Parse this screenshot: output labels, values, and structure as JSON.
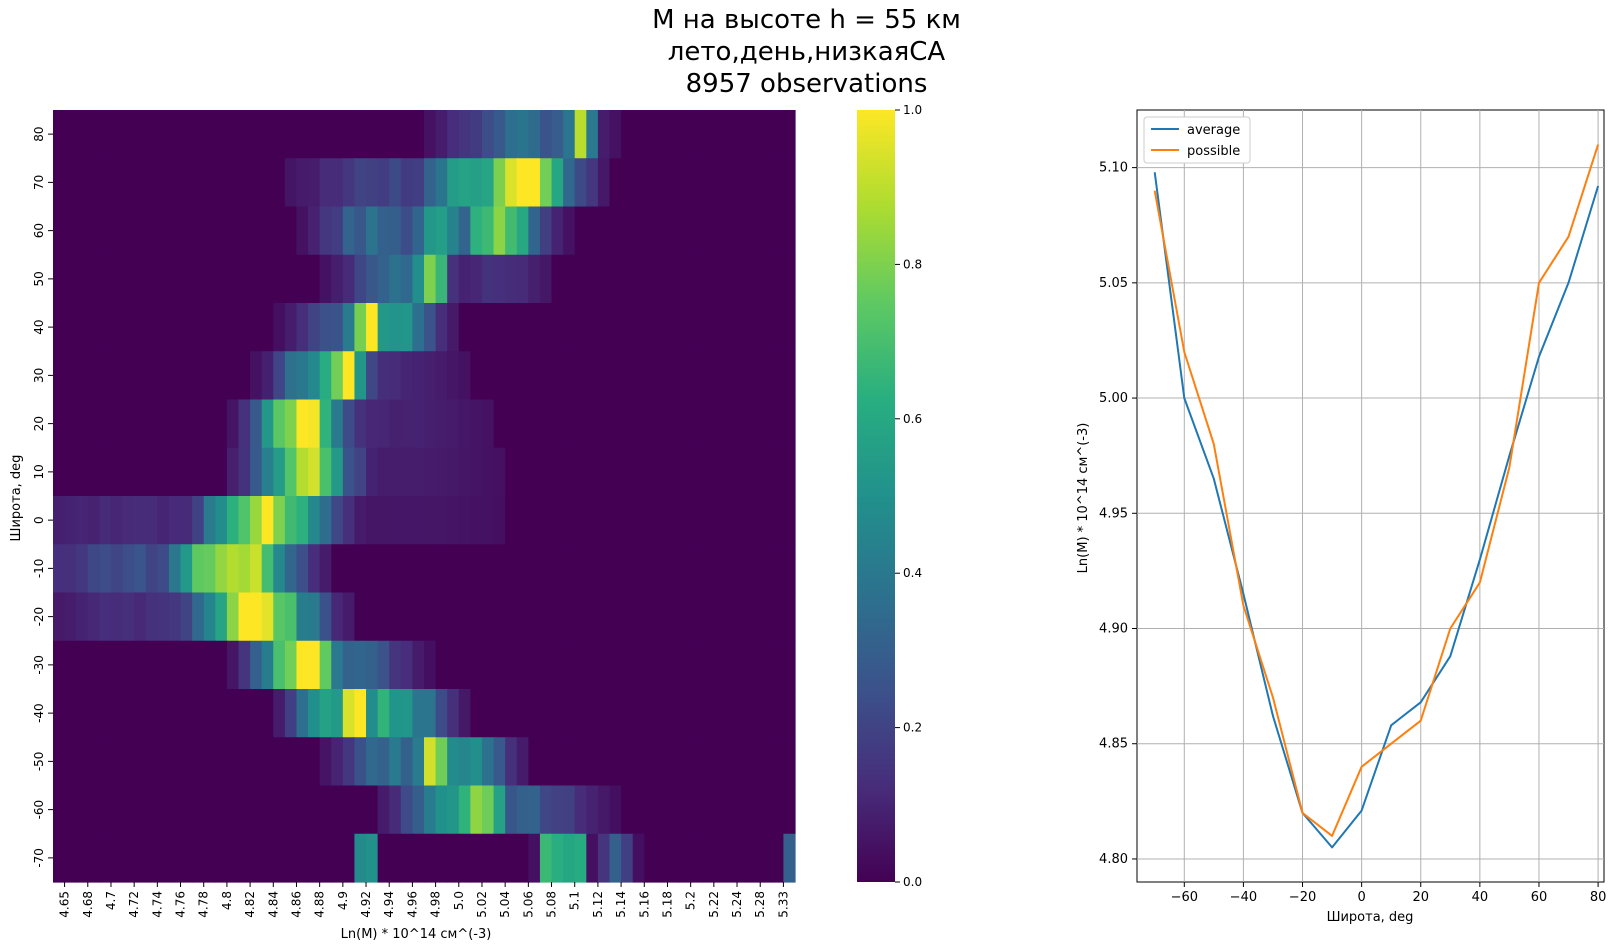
{
  "figure": {
    "title_lines": [
      "M на высоте h = 55 км",
      "лето,день,низкаяCA",
      "8957 observations"
    ]
  },
  "chart_data": [
    {
      "type": "heatmap",
      "xlabel": "Ln(M) * 10^14 см^(-3)",
      "ylabel": "Широта, deg",
      "x_tick_labels": [
        "4.65",
        "4.68",
        "4.7",
        "4.72",
        "4.74",
        "4.76",
        "4.78",
        "4.8",
        "4.82",
        "4.84",
        "4.86",
        "4.88",
        "4.9",
        "4.92",
        "4.94",
        "4.96",
        "4.98",
        "5.0",
        "5.02",
        "5.04",
        "5.06",
        "5.08",
        "5.1",
        "5.12",
        "5.14",
        "5.16",
        "5.18",
        "5.2",
        "5.22",
        "5.24",
        "5.28",
        "5.33"
      ],
      "y_tick_labels": [
        "80",
        "70",
        "60",
        "50",
        "40",
        "30",
        "20",
        "10",
        "0",
        "-10",
        "-20",
        "-30",
        "-40",
        "-50",
        "-60",
        "-70"
      ],
      "colormap": "viridis",
      "colorbar": {
        "range": [
          0,
          1
        ],
        "ticks": [
          "0.0",
          "0.2",
          "0.4",
          "0.6",
          "0.8",
          "1.0"
        ]
      },
      "n_columns": 64,
      "rows": [
        {
          "lat": 80,
          "peaks": [
            [
              45,
              1.0,
              0.7
            ],
            [
              40,
              0.35,
              4.0
            ],
            [
              43,
              0.3,
              2.0
            ]
          ]
        },
        {
          "lat": 70,
          "peaks": [
            [
              40,
              1.0,
              3.0
            ],
            [
              35,
              0.55,
              3.0
            ],
            [
              28,
              0.2,
              5.0
            ]
          ]
        },
        {
          "lat": 60,
          "peaks": [
            [
              38,
              0.8,
              2.5
            ],
            [
              33,
              0.55,
              2.0
            ],
            [
              27,
              0.35,
              3.0
            ]
          ]
        },
        {
          "lat": 50,
          "peaks": [
            [
              32,
              1.0,
              1.0
            ],
            [
              29,
              0.35,
              3.0
            ],
            [
              38,
              0.15,
              3.0
            ]
          ]
        },
        {
          "lat": 40,
          "peaks": [
            [
              26.5,
              1.0,
              1.2
            ],
            [
              29,
              0.5,
              2.5
            ],
            [
              24,
              0.3,
              2.5
            ]
          ]
        },
        {
          "lat": 30,
          "peaks": [
            [
              24.5,
              1.0,
              1.5
            ],
            [
              22.5,
              0.55,
              2.5
            ],
            [
              28,
              0.12,
              5.0
            ]
          ]
        },
        {
          "lat": 20,
          "peaks": [
            [
              21,
              0.95,
              2.5
            ],
            [
              26,
              0.12,
              8.0
            ]
          ]
        },
        {
          "lat": 10,
          "peaks": [
            [
              21,
              0.88,
              2.8
            ],
            [
              28,
              0.08,
              9.0
            ]
          ]
        },
        {
          "lat": 0,
          "peaks": [
            [
              18,
              1.0,
              3.5
            ],
            [
              7,
              0.12,
              10.0
            ],
            [
              30,
              0.06,
              9.0
            ]
          ]
        },
        {
          "lat": -10,
          "peaks": [
            [
              15,
              1.0,
              3.5
            ],
            [
              8,
              0.25,
              8.0
            ]
          ]
        },
        {
          "lat": -20,
          "peaks": [
            [
              17,
              1.0,
              3.5
            ],
            [
              10,
              0.15,
              8.0
            ]
          ]
        },
        {
          "lat": -30,
          "peaks": [
            [
              21,
              1.0,
              2.5
            ],
            [
              26,
              0.3,
              3.0
            ]
          ]
        },
        {
          "lat": -40,
          "peaks": [
            [
              25.5,
              1.0,
              1.2
            ],
            [
              29,
              0.6,
              3.0
            ],
            [
              23,
              0.55,
              2.0
            ]
          ]
        },
        {
          "lat": -50,
          "peaks": [
            [
              32.5,
              1.0,
              1.2
            ],
            [
              35,
              0.55,
              2.5
            ],
            [
              29,
              0.4,
              3.0
            ]
          ]
        },
        {
          "lat": -60,
          "peaks": [
            [
              36.5,
              1.0,
              1.5
            ],
            [
              34,
              0.55,
              3.0
            ],
            [
              40,
              0.3,
              4.0
            ]
          ]
        },
        {
          "lat": -70,
          "peaks": [
            [
              42.5,
              1.0,
              0.6
            ],
            [
              44.5,
              1.0,
              0.6
            ],
            [
              26.5,
              0.75,
              0.6
            ],
            [
              63.5,
              0.5,
              0.6
            ],
            [
              48,
              0.3,
              1.0
            ]
          ]
        }
      ]
    },
    {
      "type": "line",
      "xlabel": "Широта, deg",
      "ylabel": "Ln(M) * 10^14 см^(-3)",
      "xlim": [
        -76,
        82
      ],
      "ylim": [
        4.79,
        5.125
      ],
      "x_ticks": [
        -60,
        -40,
        -20,
        0,
        20,
        40,
        60,
        80
      ],
      "x_tick_labels": [
        "−60",
        "−40",
        "−20",
        "0",
        "20",
        "40",
        "60",
        "80"
      ],
      "y_ticks": [
        4.8,
        4.85,
        4.9,
        4.95,
        5.0,
        5.05,
        5.1
      ],
      "y_tick_labels": [
        "4.80",
        "4.85",
        "4.90",
        "4.95",
        "5.00",
        "5.05",
        "5.10"
      ],
      "grid": true,
      "legend": "top-left",
      "x": [
        -70,
        -60,
        -50,
        -40,
        -30,
        -20,
        -10,
        0,
        10,
        20,
        30,
        40,
        50,
        60,
        70,
        80
      ],
      "series": [
        {
          "name": "average",
          "color": "#1f77b4",
          "values": [
            5.098,
            5.0,
            4.965,
            4.915,
            4.862,
            4.82,
            4.805,
            4.821,
            4.858,
            4.868,
            4.888,
            4.93,
            4.975,
            5.018,
            5.05,
            5.092
          ]
        },
        {
          "name": "possible",
          "color": "#ff7f0e",
          "values": [
            5.09,
            5.02,
            4.98,
            4.91,
            4.87,
            4.82,
            4.81,
            4.84,
            4.85,
            4.86,
            4.9,
            4.92,
            4.97,
            5.05,
            5.07,
            5.11
          ]
        }
      ]
    }
  ]
}
